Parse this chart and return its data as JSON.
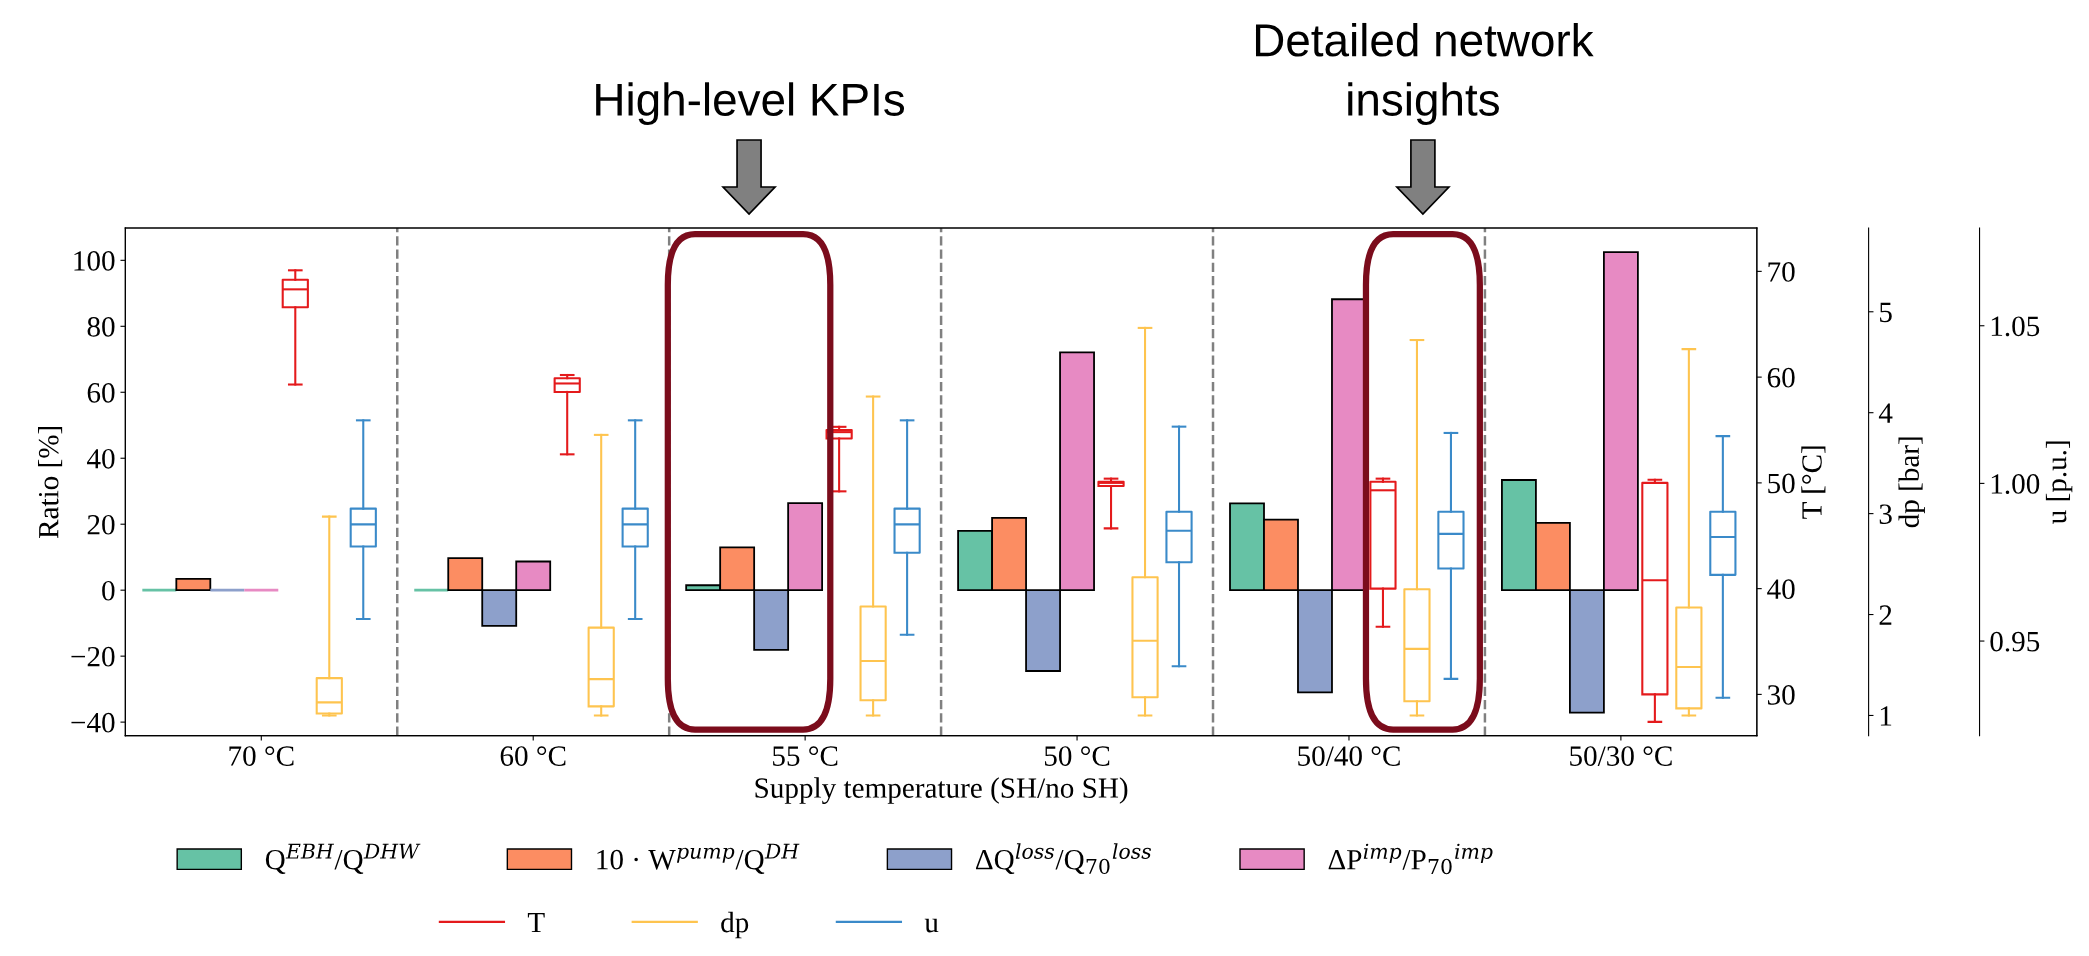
{
  "chart_data": [
    {
      "type": "bar",
      "xlabel": "Supply temperature (SH/no SH)",
      "ylabel": "Ratio [%]",
      "y2label": "T [°C]",
      "y3label": "dp [bar]",
      "categories": [
        "70 °C",
        "60 °C",
        "55 °C",
        "50 °C",
        "50/40 °C",
        "50/30 °C"
      ],
      "series": [
        {
          "name": "Q$^{EBH}$/Q$^{DHW}$",
          "color": "#66c2a5",
          "values": [
            0,
            0,
            1.5,
            18.0,
            26.3,
            33.4
          ]
        },
        {
          "name": "10 · W$^{pump}$/Q$^{DH}$",
          "color": "#fc8d62",
          "values": [
            3.4,
            9.7,
            13.0,
            21.9,
            21.4,
            20.4
          ]
        },
        {
          "name": "ΔQ$^{loss}$/Q$_{70}$$^{loss}$",
          "color": "#8da0cb",
          "values": [
            0,
            -10.8,
            -18.1,
            -24.5,
            -31.0,
            -37.1
          ]
        },
        {
          "name": "ΔP$^{imp}$/P$_{70}$$^{imp}$",
          "color": "#e78ac3",
          "values": [
            0,
            8.7,
            26.4,
            72.1,
            88.2,
            102.5
          ]
        },
        {
          "name": "T",
          "type": "box",
          "axis": "y2",
          "color": "#e41a1c",
          "boxes": [
            {
              "low": 59.3,
              "q1": 66.6,
              "median": 68.3,
              "q3": 69.2,
              "high": 70.1
            },
            {
              "low": 52.7,
              "q1": 58.6,
              "median": 59.4,
              "q3": 59.9,
              "high": 60.2
            },
            {
              "low": 49.2,
              "q1": 54.2,
              "median": 54.8,
              "q3": 55.0,
              "high": 55.3
            },
            {
              "low": 45.7,
              "q1": 49.7,
              "median": 50.0,
              "q3": 50.1,
              "high": 50.4
            },
            {
              "low": 36.4,
              "q1": 40.0,
              "median": 49.3,
              "q3": 50.1,
              "high": 50.4
            },
            {
              "low": 27.4,
              "q1": 30.0,
              "median": 40.8,
              "q3": 50.0,
              "high": 50.3
            }
          ]
        },
        {
          "name": "dp",
          "type": "box",
          "axis": "y3",
          "color": "#fec44f",
          "boxes": [
            {
              "low": 1.0,
              "q1": 1.02,
              "median": 1.13,
              "q3": 1.37,
              "high": 2.97
            },
            {
              "low": 1.0,
              "q1": 1.09,
              "median": 1.36,
              "q3": 1.87,
              "high": 3.78
            },
            {
              "low": 1.0,
              "q1": 1.15,
              "median": 1.54,
              "q3": 2.08,
              "high": 4.16
            },
            {
              "low": 1.0,
              "q1": 1.18,
              "median": 1.74,
              "q3": 2.37,
              "high": 4.84
            },
            {
              "low": 1.0,
              "q1": 1.14,
              "median": 1.66,
              "q3": 2.25,
              "high": 4.72
            },
            {
              "low": 1.0,
              "q1": 1.07,
              "median": 1.48,
              "q3": 2.07,
              "high": 4.63
            }
          ]
        }
      ],
      "ylim": [
        -44.1,
        109.8
      ],
      "yticks": [
        {
          "value": -40,
          "label": "−40"
        },
        {
          "value": -20,
          "label": "−20"
        },
        0,
        20,
        40,
        60,
        80,
        100
      ],
      "y2lim": [
        26.1,
        74.1
      ],
      "y2ticks": [
        30,
        40,
        50,
        60,
        70
      ],
      "y3lim": [
        0.8,
        5.83
      ],
      "y3ticks": [
        1,
        2,
        3,
        4,
        5
      ],
      "annotations": [
        "High-level KPIs",
        "Detailed network\ninsights"
      ],
      "grid": false,
      "legend": "bottom"
    },
    {
      "type": "box",
      "ylabel": "u [p.u.]",
      "tick_labels": "y",
      "categories": [
        null,
        null,
        null,
        null,
        null,
        null
      ],
      "series": [
        {
          "name": "u",
          "color": "#3a8ac9",
          "boxes": [
            {
              "low": 0.957,
              "q1": 0.98,
              "median": 0.987,
              "q3": 0.992,
              "high": 1.02
            },
            {
              "low": 0.957,
              "q1": 0.98,
              "median": 0.987,
              "q3": 0.992,
              "high": 1.02
            },
            {
              "low": 0.952,
              "q1": 0.978,
              "median": 0.987,
              "q3": 0.992,
              "high": 1.02
            },
            {
              "low": 0.942,
              "q1": 0.975,
              "median": 0.985,
              "q3": 0.991,
              "high": 1.018
            },
            {
              "low": 0.938,
              "q1": 0.973,
              "median": 0.984,
              "q3": 0.991,
              "high": 1.016
            },
            {
              "low": 0.932,
              "q1": 0.971,
              "median": 0.983,
              "q3": 0.991,
              "high": 1.015
            }
          ]
        }
      ],
      "ylim": [
        0.92,
        1.081
      ],
      "yticks": [
        0.95,
        {
          "value": 1.0,
          "label": "1.00"
        },
        1.05
      ]
    }
  ]
}
